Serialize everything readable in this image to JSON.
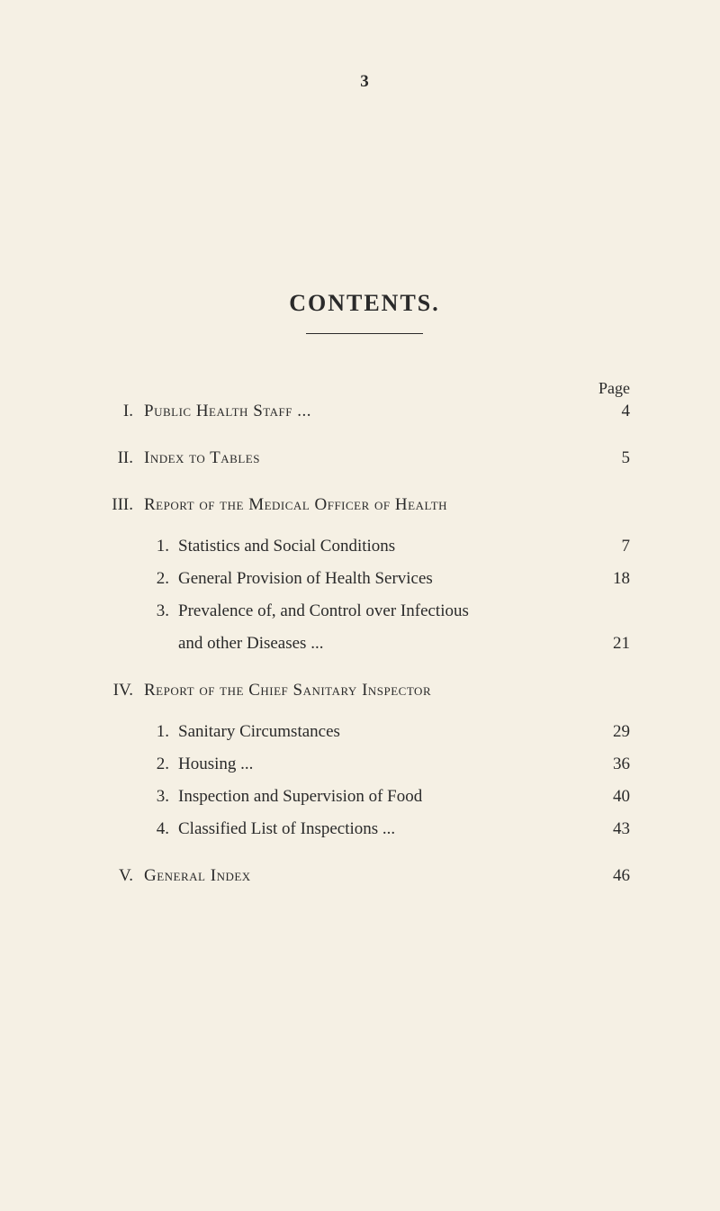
{
  "pageNumber": "3",
  "title": "CONTENTS.",
  "pageLabel": "Page",
  "sections": [
    {
      "roman": "I.",
      "title": "Public Health Staff ...",
      "dots": "...          ...",
      "page": "4"
    },
    {
      "roman": "II.",
      "title": "Index to Tables",
      "dots": "...          ...          ...",
      "page": "5"
    },
    {
      "roman": "III.",
      "title": "Report of the Medical Officer of Health",
      "page": "",
      "subs": [
        {
          "num": "1.",
          "text": "Statistics and Social Conditions",
          "dots": "...",
          "page": "7"
        },
        {
          "num": "2.",
          "text": "General Provision of Health Services",
          "dots": "...",
          "page": "18"
        },
        {
          "num": "3.",
          "text": "Prevalence of, and Control over Infectious",
          "dots": "",
          "page": "",
          "cont": "and other Diseases ...",
          "contDots": "...          ...",
          "contPage": "21"
        }
      ]
    },
    {
      "roman": "IV.",
      "title": "Report of the Chief Sanitary Inspector",
      "page": "",
      "subs": [
        {
          "num": "1.",
          "text": "Sanitary Circumstances",
          "dots": "...          ...",
          "page": "29"
        },
        {
          "num": "2.",
          "text": "Housing      ...",
          "dots": "...          ...          ...",
          "page": "36"
        },
        {
          "num": "3.",
          "text": "Inspection and Supervision of Food",
          "dots": "...",
          "page": "40"
        },
        {
          "num": "4.",
          "text": "Classified List of Inspections ...",
          "dots": "...",
          "page": "43"
        }
      ]
    },
    {
      "roman": "V.",
      "title": "General Index",
      "dots": "...          ...          ...",
      "page": "46"
    }
  ]
}
